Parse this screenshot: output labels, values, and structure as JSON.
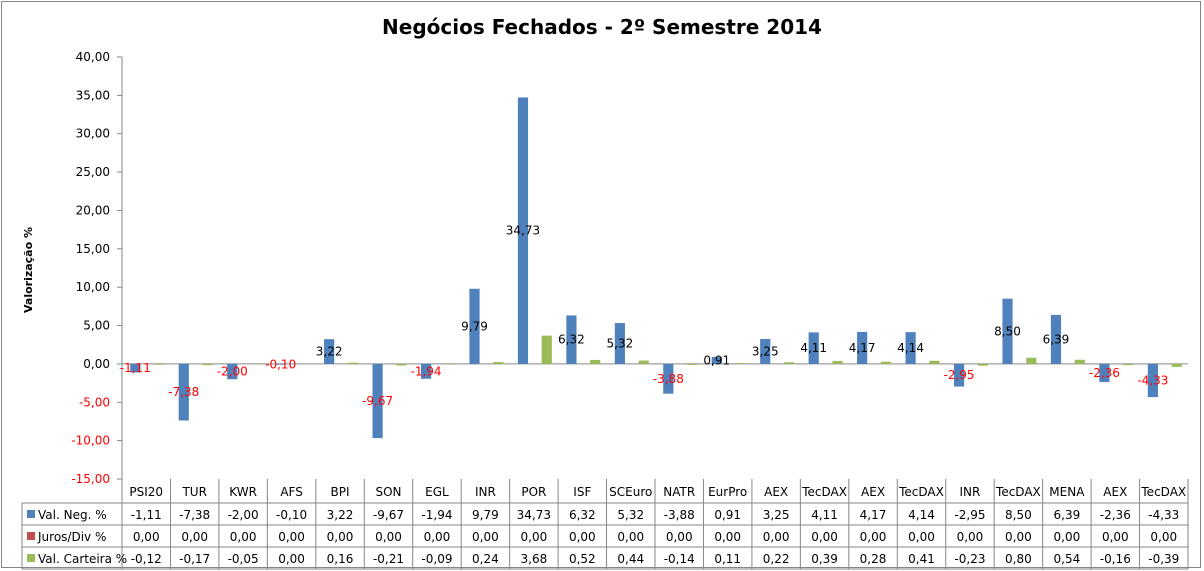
{
  "chart_data": {
    "type": "bar",
    "title": "Negócios Fechados - 2º Semestre 2014",
    "ylabel": "Valorização %",
    "xlabel": "",
    "ylim": [
      -15,
      40
    ],
    "ytick_step": 5,
    "yticks": [
      "40,00",
      "35,00",
      "30,00",
      "25,00",
      "20,00",
      "15,00",
      "10,00",
      "5,00",
      "0,00",
      "-5,00",
      "-10,00",
      "-15,00"
    ],
    "grid": false,
    "legend": "table-left",
    "categories": [
      "PSI20",
      "TUR",
      "KWR",
      "AFS",
      "BPI",
      "SON",
      "EGL",
      "INR",
      "POR",
      "ISF",
      "SCEuro",
      "NATR",
      "EurPro",
      "AEX",
      "TecDAX",
      "AEX",
      "TecDAX",
      "INR",
      "TecDAX",
      "MENA",
      "AEX",
      "TecDAX"
    ],
    "series": [
      {
        "name": "Val. Neg. %",
        "color": "#4F81BD",
        "labels_shown": true,
        "values": [
          -1.11,
          -7.38,
          -2.0,
          -0.1,
          3.22,
          -9.67,
          -1.94,
          9.79,
          34.73,
          6.32,
          5.32,
          -3.88,
          0.91,
          3.25,
          4.11,
          4.17,
          4.14,
          -2.95,
          8.5,
          6.39,
          -2.36,
          -4.33
        ],
        "display": [
          "-1,11",
          "-7,38",
          "-2,00",
          "-0,10",
          "3,22",
          "-9,67",
          "-1,94",
          "9,79",
          "34,73",
          "6,32",
          "5,32",
          "-3,88",
          "0,91",
          "3,25",
          "4,11",
          "4,17",
          "4,14",
          "-2,95",
          "8,50",
          "6,39",
          "-2,36",
          "-4,33"
        ]
      },
      {
        "name": "Juros/Div %",
        "color": "#C0504D",
        "labels_shown": false,
        "values": [
          0,
          0,
          0,
          0,
          0,
          0,
          0,
          0,
          0,
          0,
          0,
          0,
          0,
          0,
          0,
          0,
          0,
          0,
          0,
          0,
          0,
          0
        ],
        "display": [
          "0,00",
          "0,00",
          "0,00",
          "0,00",
          "0,00",
          "0,00",
          "0,00",
          "0,00",
          "0,00",
          "0,00",
          "0,00",
          "0,00",
          "0,00",
          "0,00",
          "0,00",
          "0,00",
          "0,00",
          "0,00",
          "0,00",
          "0,00",
          "0,00",
          "0,00"
        ]
      },
      {
        "name": "Val. Carteira %",
        "color": "#9BBB59",
        "labels_shown": false,
        "values": [
          -0.12,
          -0.17,
          -0.05,
          0.0,
          0.16,
          -0.21,
          -0.09,
          0.24,
          3.68,
          0.52,
          0.44,
          -0.14,
          0.11,
          0.22,
          0.39,
          0.28,
          0.41,
          -0.23,
          0.8,
          0.54,
          -0.16,
          -0.39
        ],
        "display": [
          "-0,12",
          "-0,17",
          "-0,05",
          "0,00",
          "0,16",
          "-0,21",
          "-0,09",
          "0,24",
          "3,68",
          "0,52",
          "0,44",
          "-0,14",
          "0,11",
          "0,22",
          "0,39",
          "0,28",
          "0,41",
          "-0,23",
          "0,80",
          "0,54",
          "-0,16",
          "-0,39"
        ]
      }
    ],
    "negative_label_color": "#FF0000"
  }
}
